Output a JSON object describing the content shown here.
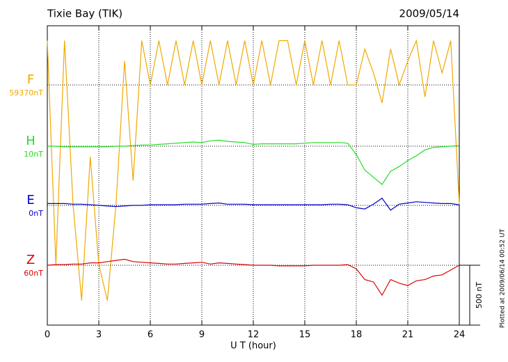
{
  "chart_data": {
    "type": "line",
    "title": "Tixie Bay (TIK)",
    "date": "2009/05/14",
    "xlabel": "U T (hour)",
    "note": "Plotted at 2009/06/14 00:52 UT",
    "scale_bar": {
      "value": 500,
      "label": "500 nT"
    },
    "xlim": [
      0,
      24
    ],
    "xticks": [
      0,
      3,
      6,
      9,
      12,
      15,
      18,
      21,
      24
    ],
    "grid": true,
    "x": [
      0,
      0.5,
      1,
      1.5,
      2,
      2.5,
      3,
      3.5,
      4,
      4.5,
      5,
      5.5,
      6,
      6.5,
      7,
      7.5,
      8,
      8.5,
      9,
      9.5,
      10,
      10.5,
      11,
      11.5,
      12,
      12.5,
      13,
      13.5,
      14,
      14.5,
      15,
      15.5,
      16,
      16.5,
      17,
      17.5,
      18,
      18.5,
      19,
      19.5,
      20,
      20.5,
      21,
      21.5,
      22,
      22.5,
      23,
      23.5,
      24
    ],
    "series": [
      {
        "name": "F",
        "color": "#f0a800",
        "offset": {
          "value": 59370,
          "label": "59370nT"
        },
        "values": [
          59740,
          57870,
          59740,
          58370,
          57570,
          58770,
          57870,
          57570,
          58370,
          59570,
          58570,
          59740,
          59370,
          59740,
          59370,
          59740,
          59370,
          59740,
          59370,
          59740,
          59370,
          59740,
          59370,
          59740,
          59370,
          59740,
          59370,
          59740,
          59740,
          59370,
          59740,
          59370,
          59740,
          59370,
          59740,
          59370,
          59370,
          59670,
          59470,
          59220,
          59670,
          59370,
          59570,
          59740,
          59270,
          59740,
          59470,
          59740,
          58370
        ]
      },
      {
        "name": "H",
        "color": "#22dd22",
        "offset": {
          "value": 10,
          "label": "10nT"
        },
        "values": [
          10,
          10,
          5,
          5,
          5,
          5,
          5,
          5,
          10,
          10,
          15,
          20,
          20,
          25,
          30,
          35,
          40,
          45,
          40,
          55,
          60,
          50,
          45,
          40,
          25,
          30,
          30,
          30,
          30,
          30,
          35,
          40,
          40,
          40,
          40,
          35,
          -60,
          -190,
          -250,
          -310,
          -200,
          -160,
          -110,
          -70,
          -20,
          0,
          5,
          10,
          15
        ]
      },
      {
        "name": "E",
        "color": "#0000cc",
        "offset": {
          "value": 0,
          "label": "0nT"
        },
        "values": [
          15,
          15,
          15,
          10,
          10,
          5,
          0,
          -5,
          -10,
          -5,
          0,
          0,
          5,
          5,
          5,
          5,
          10,
          10,
          10,
          15,
          20,
          10,
          10,
          10,
          5,
          5,
          5,
          5,
          5,
          5,
          5,
          5,
          5,
          10,
          10,
          5,
          -20,
          -30,
          10,
          60,
          -40,
          10,
          20,
          30,
          25,
          20,
          15,
          15,
          5
        ]
      },
      {
        "name": "Z",
        "color": "#dd0000",
        "offset": {
          "value": 60,
          "label": "60nT"
        },
        "values": [
          60,
          65,
          65,
          70,
          70,
          80,
          80,
          90,
          100,
          110,
          90,
          85,
          80,
          75,
          70,
          70,
          75,
          80,
          85,
          70,
          80,
          75,
          70,
          65,
          60,
          60,
          60,
          55,
          55,
          55,
          55,
          60,
          60,
          60,
          60,
          65,
          30,
          -60,
          -80,
          -190,
          -60,
          -90,
          -110,
          -70,
          -60,
          -30,
          -20,
          20,
          60
        ]
      }
    ]
  }
}
